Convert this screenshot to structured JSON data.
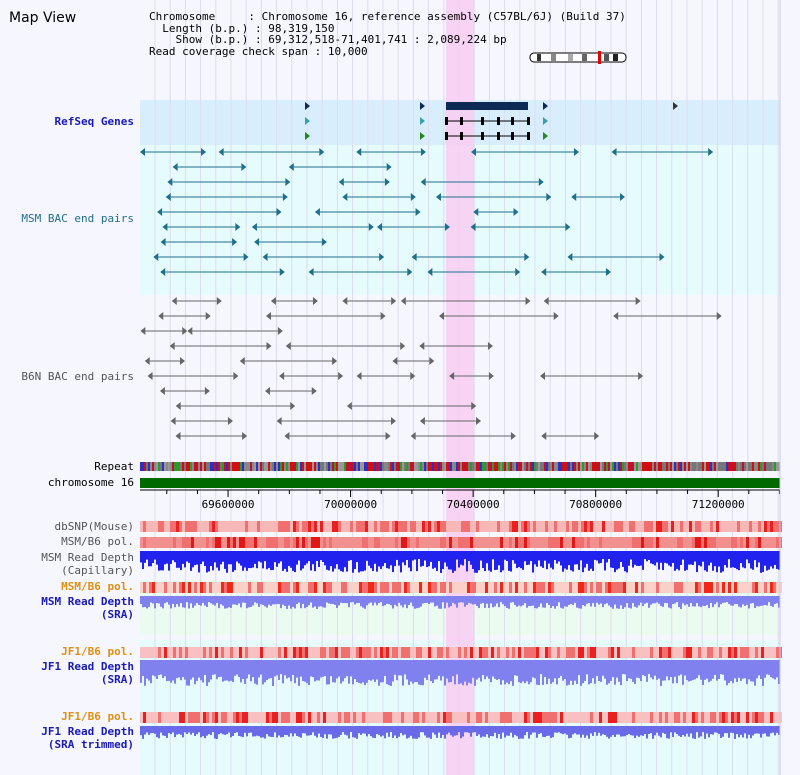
{
  "title": "Map View",
  "info": {
    "chromosome_label": "Chromosome",
    "chromosome_value": "Chromosome 16, reference assembly (C57BL/6J) (Build 37)",
    "length_label": "Length (b.p.)",
    "length_value": "98,319,150",
    "show_label": "Show (b.p.)",
    "show_value": "69,312,518-71,401,741 : 2,089,224 bp",
    "coverage_label": "Read coverage check span",
    "coverage_value": "10,000"
  },
  "tracks": {
    "refseq": "RefSeq Genes",
    "msm_bac": "MSM BAC end pairs",
    "b6n_bac": "B6N BAC end pairs",
    "repeat": "Repeat",
    "chromosome": "chromosome 16",
    "dbsnp": "dbSNP(Mouse)",
    "msm_b6_pol_1": "MSM/B6 pol.",
    "msm_read_cap_1": "MSM Read Depth",
    "msm_read_cap_2": "(Capillary)",
    "msm_b6_pol_2": "MSM/B6 pol.",
    "msm_read_sra_1": "MSM Read Depth",
    "msm_read_sra_2": "(SRA)",
    "jf1_b6_pol_1": "JF1/B6 pol.",
    "jf1_read_sra_1": "JF1 Read Depth",
    "jf1_read_sra_2": "(SRA)",
    "jf1_b6_pol_2": "JF1/B6 pol.",
    "jf1_read_trim_1": "JF1 Read Depth",
    "jf1_read_trim_2": "(SRA trimmed)"
  },
  "axis": {
    "ticks": [
      "69600000",
      "70000000",
      "70400000",
      "70800000",
      "71200000"
    ],
    "range": [
      69312518,
      71401741
    ]
  },
  "colors": {
    "highlight": "#f8ccf2",
    "refseq_band": "#d9eefc",
    "msm_band": "#e6fbfb",
    "chromosome_bar": "#006a00",
    "depth_capillary": "#2222ee",
    "depth_sra": "#8080ee",
    "pol_red": "#ee2222"
  }
}
